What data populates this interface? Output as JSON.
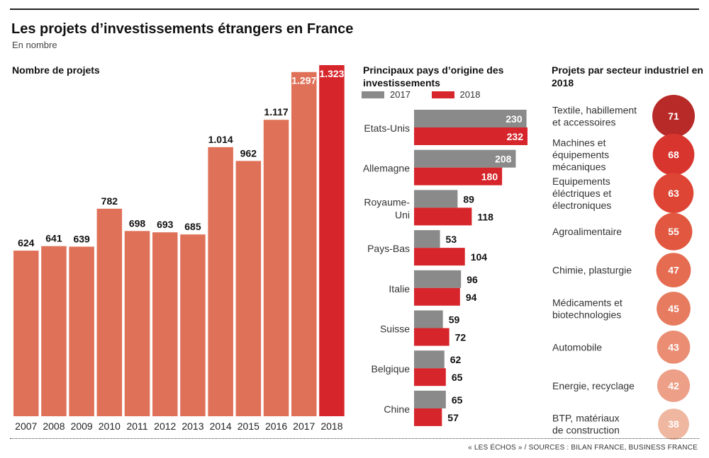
{
  "header": {
    "title": "Les projets d’investissements étrangers en France",
    "subtitle": "En nombre"
  },
  "source": "« LES ÉCHOS » / SOURCES : BILAN FRANCE, BUSINESS FRANCE",
  "colors": {
    "bar_main": "#e07159",
    "bar_highlight": "#d7262b",
    "grey": "#8a8a8a",
    "red": "#d7262b"
  },
  "chart_data": [
    {
      "type": "bar",
      "title": "Nombre de projets",
      "categories": [
        "2007",
        "2008",
        "2009",
        "2010",
        "2011",
        "2012",
        "2013",
        "2014",
        "2015",
        "2016",
        "2017",
        "2018"
      ],
      "values": [
        624,
        641,
        639,
        782,
        698,
        693,
        685,
        1014,
        962,
        1117,
        1297,
        1323
      ],
      "value_labels": [
        "624",
        "641",
        "639",
        "782",
        "698",
        "693",
        "685",
        "1.014",
        "962",
        "1.117",
        "1.297",
        "1.323"
      ],
      "highlight": "2018",
      "ylim": [
        0,
        1323
      ]
    },
    {
      "type": "bar",
      "orientation": "horizontal",
      "title": "Principaux pays d’origine des investissements",
      "categories": [
        "Etats-Unis",
        "Allemagne",
        "Royaume-\nUni",
        "Pays-Bas",
        "Italie",
        "Suisse",
        "Belgique",
        "Chine"
      ],
      "series": [
        {
          "name": "2017",
          "values": [
            230,
            208,
            89,
            53,
            96,
            59,
            62,
            65
          ]
        },
        {
          "name": "2018",
          "values": [
            232,
            180,
            118,
            104,
            94,
            72,
            65,
            57
          ]
        }
      ],
      "xlim": [
        0,
        232
      ]
    },
    {
      "type": "bubble",
      "title": "Projets par secteur industriel en 2018",
      "categories": [
        "Textile, habillement\net accessoires",
        "Machines et\néquipements\nmécaniques",
        "Equipements\néléctriques et\nélectroniques",
        "Agroalimentaire",
        "Chimie, plasturgie",
        "Médicaments et\nbiotechnologies",
        "Automobile",
        "Energie, recyclage",
        "BTP, matériaux\nde construction"
      ],
      "values": [
        71,
        68,
        63,
        55,
        47,
        45,
        43,
        42,
        38
      ],
      "colors": [
        "#b72a28",
        "#d8352e",
        "#de4535",
        "#e2573f",
        "#e56c51",
        "#e77b60",
        "#ea8d73",
        "#ed9f88",
        "#f0b7a0"
      ]
    }
  ]
}
